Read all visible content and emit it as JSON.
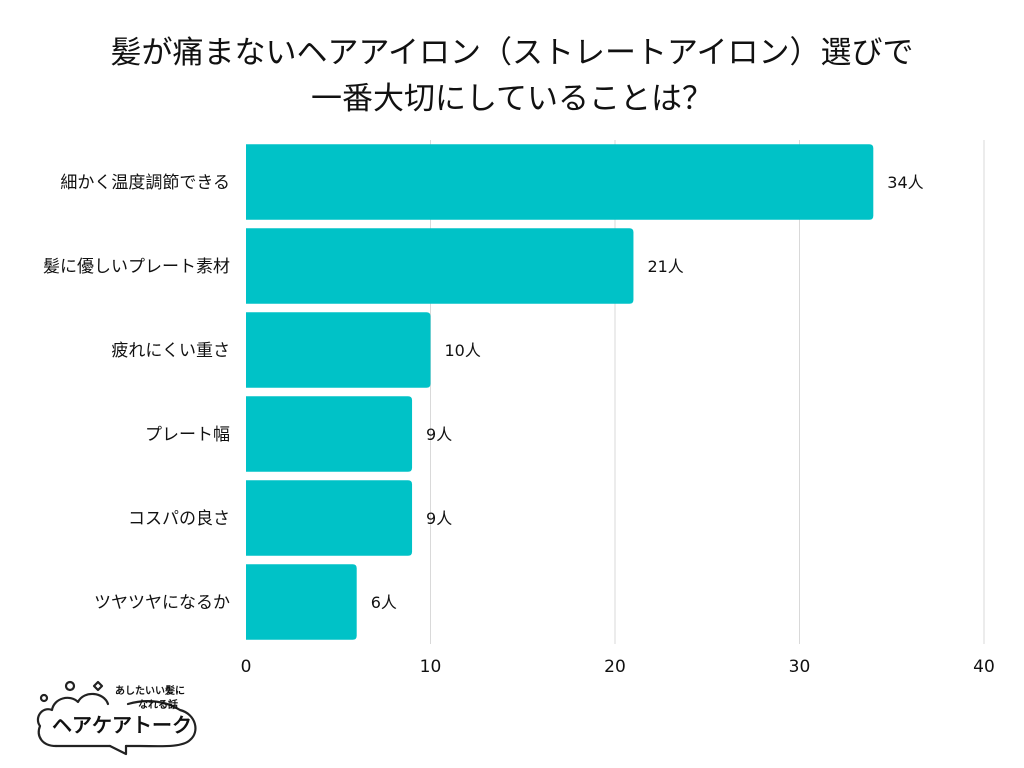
{
  "title_line1": "髪が痛まないヘアアイロン（ストレートアイロン）選びで",
  "title_line2": "一番大切にしていることは？",
  "logo": {
    "tagline_line1": "あしたいい髪に",
    "tagline_line2": "なれる話",
    "name": "ヘアケアトーク"
  },
  "colors": {
    "bar": "#00C2C7",
    "grid": "#D9D9D9",
    "text": "#111111"
  },
  "chart_data": {
    "type": "bar",
    "orientation": "horizontal",
    "categories": [
      "細かく温度調節できる",
      "髪に優しいプレート素材",
      "疲れにくい重さ",
      "プレート幅",
      "コスパの良さ",
      "ツヤツヤになるか"
    ],
    "values": [
      34,
      21,
      10,
      9,
      9,
      6
    ],
    "value_labels": [
      "34人",
      "21人",
      "10人",
      "9人",
      "9人",
      "6人"
    ],
    "xlim": [
      0,
      40
    ],
    "xticks": [
      "0",
      "10",
      "20",
      "30",
      "40"
    ],
    "xtick_values": [
      0,
      10,
      20,
      30,
      40
    ],
    "grid": true,
    "legend": "none"
  }
}
